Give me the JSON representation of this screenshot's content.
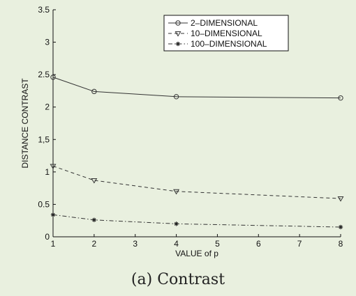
{
  "chart_data": {
    "type": "line",
    "title": "",
    "xlabel": "VALUE of p",
    "ylabel": "DISTANCE CONTRAST",
    "xlim": [
      1,
      8
    ],
    "ylim": [
      0,
      3.5
    ],
    "xticks": [
      1,
      2,
      3,
      4,
      5,
      6,
      7,
      8
    ],
    "yticks": [
      0,
      0.5,
      1,
      1.5,
      2,
      2.5,
      3,
      3.5
    ],
    "ytick_labels": [
      "0",
      "0.5",
      "1",
      "1,5",
      "2",
      "2.5",
      "3",
      "3.5"
    ],
    "grid": false,
    "legend_position": "top-right",
    "x": [
      1,
      2,
      4,
      8
    ],
    "series": [
      {
        "name": "2–DIMENSIONAL",
        "values": [
          2.46,
          2.24,
          2.16,
          2.14
        ],
        "marker": "circle",
        "dash": "solid"
      },
      {
        "name": "10–DIMENSIONAL",
        "values": [
          1.09,
          0.87,
          0.7,
          0.59
        ],
        "marker": "triangle-down",
        "dash": "dashed"
      },
      {
        "name": "100–DIMENSIONAL",
        "values": [
          0.34,
          0.26,
          0.2,
          0.15
        ],
        "marker": "star",
        "dash": "dashdot"
      }
    ]
  },
  "caption": "(a) Contrast"
}
